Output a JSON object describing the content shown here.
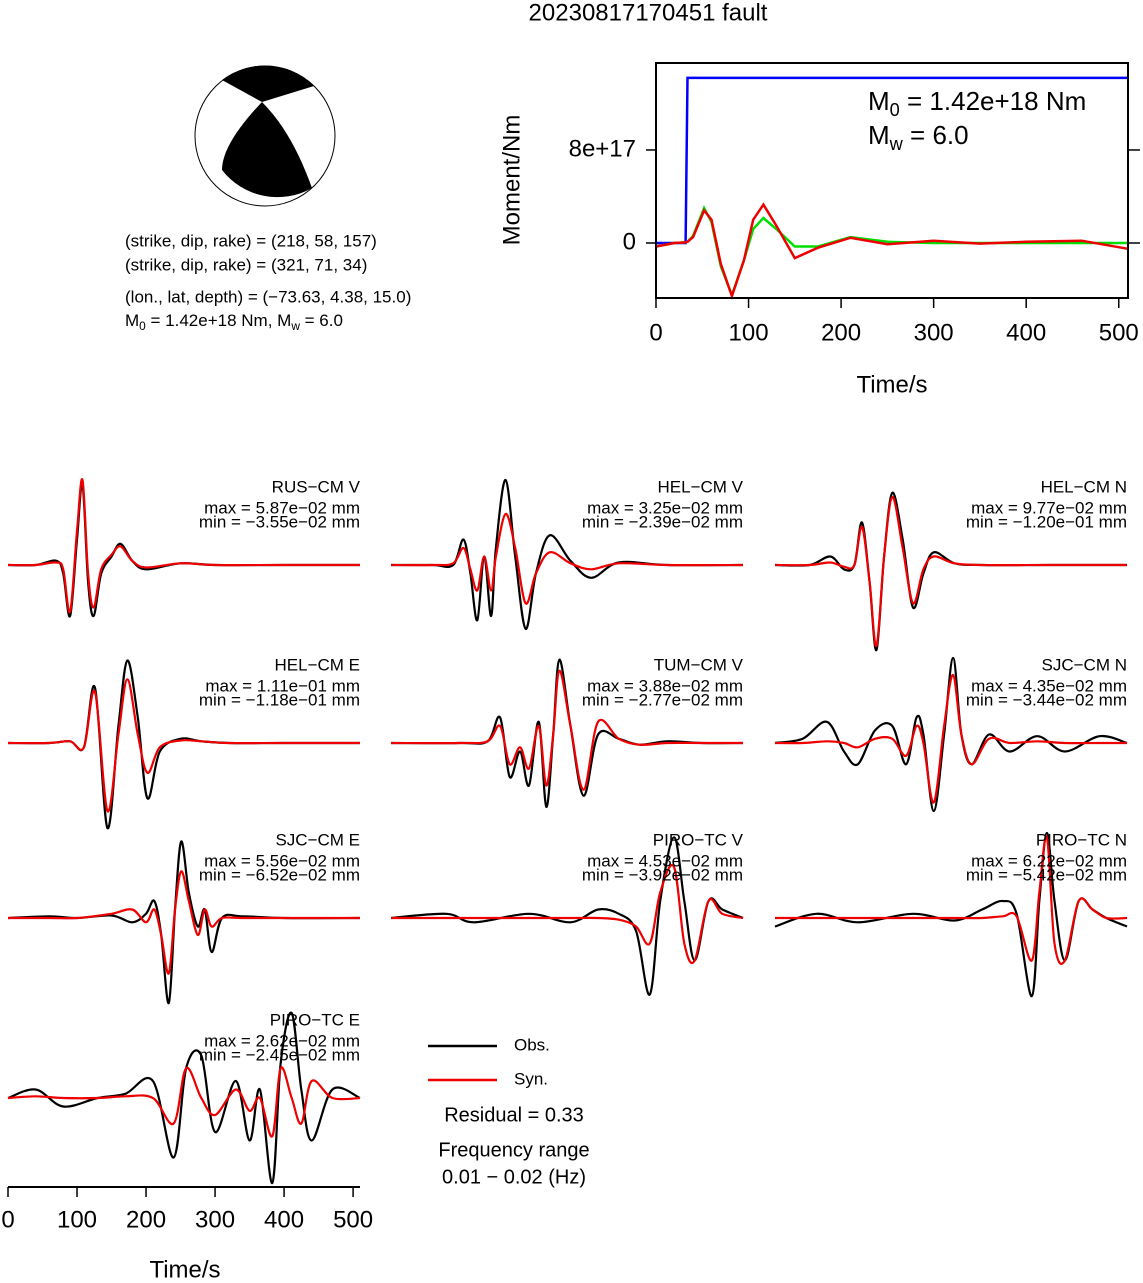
{
  "title": "20230817170451 fault",
  "mechanism": {
    "lines": [
      "(strike, dip, rake) = (218, 58, 157)",
      "(strike, dip, rake) = (321, 71, 34)",
      "(lon., lat, depth) = (−73.63, 4.38, 15.0)"
    ],
    "moment": [
      "M",
      "0",
      " = 1.42e+18 Nm, M",
      "w",
      " = 6.0"
    ]
  },
  "chart_data": [
    {
      "type": "line",
      "xlabel": "Time/s",
      "ylabel": "Moment/Nm",
      "xlim": [
        0,
        510
      ],
      "xticks": [
        0,
        100,
        200,
        300,
        400,
        500
      ],
      "ylim": [
        -4.73e+17,
        1.548e+18
      ],
      "yticks": [
        0,
        {
          "value": 8e+17,
          "label": "8e+17"
        }
      ],
      "annotations": [
        [
          "M",
          "0",
          " = 1.42e+18 Nm"
        ],
        [
          "M",
          "w",
          " = 6.0"
        ]
      ],
      "x": [
        0,
        20,
        32,
        34,
        40,
        52,
        60,
        70,
        82,
        95,
        105,
        116,
        130,
        150,
        175,
        210,
        250,
        300,
        350,
        400,
        460,
        510
      ],
      "series": [
        {
          "color": "#0000ff",
          "values": [
            0,
            0,
            0,
            1.42e+18,
            1.42e+18,
            1.42e+18,
            1.42e+18,
            1.42e+18,
            1.42e+18,
            1.42e+18,
            1.42e+18,
            1.42e+18,
            1.42e+18,
            1.42e+18,
            1.42e+18,
            1.42e+18,
            1.42e+18,
            1.42e+18,
            1.42e+18,
            1.42e+18,
            1.42e+18,
            1.42e+18
          ]
        },
        {
          "color": "#00dd00",
          "values": [
            -3e+16,
            0,
            5000000000000000.0,
            1e+16,
            6e+16,
            3e+17,
            1.8e+17,
            -2e+17,
            -4.5e+17,
            -1.5e+17,
            1.2e+17,
            2.15e+17,
            1.2e+17,
            -3e+16,
            -3e+16,
            5e+16,
            1e+16,
            0,
            0,
            0,
            0,
            0
          ]
        },
        {
          "color": "#ee0000",
          "values": [
            -3e+16,
            0,
            5000000000000000.0,
            1e+16,
            5e+16,
            2.8e+17,
            2e+17,
            -1.8e+17,
            -4.56e+17,
            -1.5e+17,
            2e+17,
            3.3e+17,
            1.5e+17,
            -1.3e+17,
            -4e+16,
            4.5e+16,
            -1e+16,
            2e+16,
            -5000000000000000.0,
            1e+16,
            2e+16,
            -5e+16
          ]
        }
      ]
    },
    {
      "type": "waveforms",
      "xlabel": "Time/s",
      "xlim": [
        0,
        510
      ],
      "xticks": [
        0,
        100,
        200,
        300,
        400,
        500
      ],
      "series": [
        {
          "name": "Obs.",
          "color": "#000000"
        },
        {
          "name": "Syn.",
          "color": "#ee0000"
        }
      ],
      "residual": "Residual = 0.33",
      "frequency": [
        "Frequency range",
        "0.01 − 0.02 (Hz)"
      ],
      "panels": [
        {
          "station": "RUS−CM V",
          "max": "max = 5.87e−02 mm",
          "min": "min = −3.55e−02 mm",
          "x": [
            0,
            40,
            70,
            80,
            90,
            100,
            108,
            116,
            124,
            135,
            150,
            163,
            180,
            200,
            250,
            300,
            400,
            510
          ],
          "traces": [
            [
              0,
              0,
              0.05,
              -0.1,
              -0.6,
              0.3,
              0.95,
              -0.2,
              -0.6,
              -0.1,
              0.1,
              0.25,
              0.05,
              -0.05,
              0.02,
              0,
              0,
              0
            ],
            [
              0,
              0,
              0.03,
              -0.05,
              -0.55,
              0.4,
              1.0,
              -0.1,
              -0.5,
              -0.05,
              0.12,
              0.22,
              0.05,
              -0.03,
              0.02,
              0,
              0,
              0
            ]
          ]
        },
        {
          "station": "HEL−CM V",
          "max": "max = 3.25e−02 mm",
          "min": "min = −2.39e−02 mm",
          "x": [
            0,
            60,
            90,
            105,
            115,
            125,
            135,
            145,
            152,
            166,
            180,
            195,
            210,
            230,
            260,
            290,
            330,
            400,
            510
          ],
          "traces": [
            [
              0,
              0,
              0,
              0.3,
              -0.1,
              -0.65,
              0.1,
              -0.6,
              0.2,
              1.0,
              0.1,
              -0.75,
              -0.1,
              0.35,
              0.05,
              -0.15,
              0.03,
              0,
              0
            ],
            [
              0,
              0,
              0.02,
              0.2,
              -0.05,
              -0.3,
              0.1,
              -0.3,
              0.1,
              0.6,
              0.2,
              -0.45,
              -0.1,
              0.15,
              0.02,
              -0.05,
              0.02,
              0,
              0
            ]
          ]
        },
        {
          "station": "HEL−CM N",
          "max": "max = 9.77e−02 mm",
          "min": "min = −1.20e−01 mm",
          "x": [
            0,
            50,
            80,
            100,
            115,
            126,
            137,
            147,
            158,
            170,
            185,
            200,
            215,
            230,
            260,
            300,
            400,
            510
          ],
          "traces": [
            [
              0,
              0,
              0.1,
              -0.05,
              0,
              0.5,
              -0.2,
              -1.0,
              0.1,
              0.85,
              0.3,
              -0.5,
              -0.1,
              0.15,
              0.02,
              0,
              0,
              0
            ],
            [
              0,
              0,
              0.03,
              -0.02,
              0,
              0.45,
              -0.2,
              -0.95,
              0.1,
              0.8,
              0.2,
              -0.45,
              -0.05,
              0.1,
              0.02,
              0,
              0,
              0
            ]
          ]
        },
        {
          "station": "HEL−CM E",
          "max": "max = 1.11e−01 mm",
          "min": "min = −1.18e−01 mm",
          "x": [
            0,
            60,
            90,
            110,
            126,
            144,
            160,
            173,
            188,
            202,
            220,
            250,
            280,
            320,
            400,
            510
          ],
          "traces": [
            [
              0,
              0,
              0.02,
              -0.05,
              0.65,
              -1.0,
              0.2,
              0.97,
              0.3,
              -0.65,
              -0.1,
              0.05,
              0.02,
              0,
              0,
              0
            ],
            [
              0,
              0,
              0.02,
              -0.05,
              0.6,
              -0.8,
              0.1,
              0.75,
              0.1,
              -0.35,
              -0.05,
              0.03,
              0.02,
              0,
              0,
              0
            ]
          ]
        },
        {
          "station": "TUM−CM V",
          "max": "max = 3.88e−02 mm",
          "min": "min = −2.77e−02 mm",
          "x": [
            0,
            100,
            140,
            158,
            172,
            187,
            200,
            214,
            225,
            235,
            244,
            260,
            279,
            300,
            330,
            360,
            400,
            450,
            510
          ],
          "traces": [
            [
              0,
              0,
              0.02,
              0.3,
              -0.4,
              -0.1,
              -0.5,
              0.25,
              -0.75,
              0.1,
              0.98,
              0.2,
              -0.62,
              0.1,
              0.05,
              -0.02,
              0.02,
              0,
              0
            ],
            [
              0,
              0,
              0.02,
              0.2,
              -0.25,
              -0.05,
              -0.3,
              0.2,
              -0.5,
              0.1,
              0.85,
              0.2,
              -0.55,
              0.25,
              0.05,
              -0.02,
              0,
              0,
              0
            ]
          ]
        },
        {
          "station": "SJC−CM N",
          "max": "max = 4.35e−02 mm",
          "min": "min = −3.44e−02 mm",
          "x": [
            0,
            40,
            75,
            100,
            120,
            145,
            170,
            190,
            205,
            215,
            230,
            245,
            258,
            270,
            285,
            310,
            340,
            380,
            420,
            470,
            510
          ],
          "traces": [
            [
              0,
              0.05,
              0.25,
              -0.1,
              -0.25,
              0.15,
              0.2,
              -0.25,
              0.3,
              0.1,
              -0.8,
              0.1,
              1.0,
              0.1,
              -0.25,
              0.1,
              -0.1,
              0.08,
              -0.1,
              0.08,
              0
            ],
            [
              0,
              0,
              0.02,
              0,
              -0.05,
              0.05,
              0.05,
              -0.15,
              0.2,
              0,
              -0.7,
              0.2,
              0.8,
              0.1,
              -0.25,
              0.05,
              0,
              0.02,
              0,
              0,
              0
            ]
          ]
        },
        {
          "station": "SJC−CM E",
          "max": "max = 5.56e−02 mm",
          "min": "min = −6.52e−02 mm",
          "x": [
            0,
            60,
            100,
            150,
            180,
            200,
            212,
            222,
            233,
            242,
            251,
            262,
            275,
            285,
            295,
            310,
            340,
            400,
            510
          ],
          "traces": [
            [
              0,
              0.02,
              0,
              0.03,
              -0.05,
              0.05,
              0.2,
              -0.2,
              -1.0,
              0.1,
              0.9,
              0.3,
              -0.1,
              0.1,
              -0.4,
              0,
              0.02,
              0,
              0
            ],
            [
              0,
              0,
              0,
              0.05,
              0.1,
              -0.05,
              0.1,
              -0.2,
              -0.65,
              0.1,
              0.55,
              0.2,
              -0.2,
              0.1,
              -0.1,
              0,
              0,
              0,
              0
            ]
          ]
        },
        {
          "station": "PIRO−TC V",
          "max": "max = 4.53e−02 mm",
          "min": "min = −3.92e−02 mm",
          "x": [
            0,
            80,
            120,
            200,
            260,
            300,
            330,
            355,
            375,
            390,
            410,
            425,
            440,
            460,
            480,
            510
          ],
          "traces": [
            [
              0,
              0.05,
              -0.05,
              0.05,
              -0.05,
              0.1,
              0.05,
              -0.15,
              -0.9,
              0.2,
              0.95,
              0.2,
              -0.5,
              0.2,
              0.1,
              0
            ],
            [
              0,
              0,
              0,
              0,
              0,
              0,
              -0.02,
              -0.1,
              -0.3,
              0.3,
              0.6,
              -0.3,
              -0.5,
              0.2,
              0.05,
              0
            ]
          ]
        },
        {
          "station": "PIRO−TC N",
          "max": "max = 6.22e−02 mm",
          "min": "min = −5.42e−02 mm",
          "x": [
            0,
            60,
            120,
            200,
            260,
            300,
            330,
            350,
            372,
            383,
            394,
            405,
            420,
            440,
            460,
            480,
            510
          ],
          "traces": [
            [
              -0.1,
              0.05,
              -0.05,
              0.05,
              -0.03,
              0.1,
              0.2,
              0.05,
              -0.92,
              0.2,
              1.0,
              0.2,
              -0.5,
              0.2,
              0.1,
              0,
              -0.1
            ],
            [
              0,
              0,
              0,
              0,
              0,
              0,
              0.02,
              0.02,
              -0.5,
              0.3,
              0.95,
              -0.3,
              -0.5,
              0.2,
              0.1,
              0,
              0
            ]
          ]
        },
        {
          "station": "PIRO−TC E",
          "max": "max = 2.62e−02 mm",
          "min": "min = −2.45e−02 mm",
          "x": [
            0,
            40,
            80,
            130,
            170,
            210,
            240,
            258,
            280,
            300,
            330,
            350,
            365,
            383,
            395,
            411,
            425,
            440,
            470,
            510
          ],
          "traces": [
            [
              0,
              0.1,
              -0.1,
              0,
              0.05,
              0.2,
              -0.7,
              0.35,
              0.5,
              -0.4,
              0.2,
              -0.5,
              0.1,
              -1.0,
              0.4,
              1.0,
              0.1,
              -0.5,
              0.1,
              0
            ],
            [
              0,
              0.02,
              0,
              0,
              0.02,
              0,
              -0.3,
              0.35,
              0,
              -0.2,
              0.1,
              -0.15,
              0,
              -0.45,
              0.35,
              0,
              -0.3,
              0.2,
              0,
              0
            ]
          ]
        }
      ]
    }
  ]
}
